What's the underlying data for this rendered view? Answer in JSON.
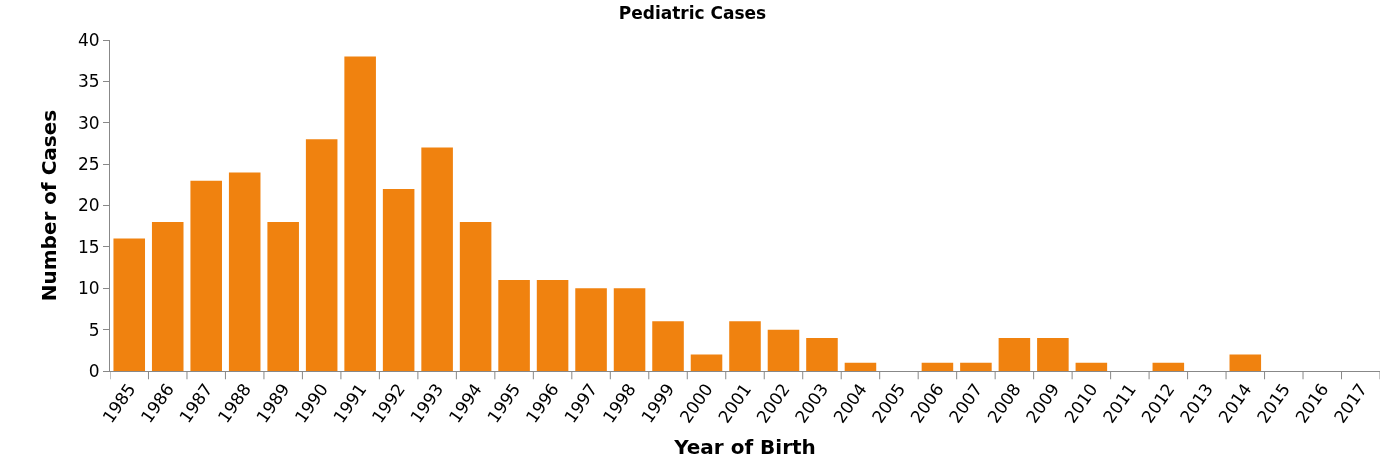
{
  "chart_data": {
    "type": "bar",
    "title": "Pediatric Cases",
    "xlabel": "Year of Birth",
    "ylabel": "Number of Cases",
    "categories": [
      "1985",
      "1986",
      "1987",
      "1988",
      "1989",
      "1990",
      "1991",
      "1992",
      "1993",
      "1994",
      "1995",
      "1996",
      "1997",
      "1998",
      "1999",
      "2000",
      "2001",
      "2002",
      "2003",
      "2004",
      "2005",
      "2006",
      "2007",
      "2008",
      "2009",
      "2010",
      "2011",
      "2012",
      "2013",
      "2014",
      "2015",
      "2016",
      "2017"
    ],
    "values": [
      16,
      18,
      23,
      24,
      18,
      28,
      38,
      22,
      27,
      18,
      11,
      11,
      10,
      10,
      6,
      2,
      6,
      5,
      4,
      1,
      0,
      1,
      1,
      4,
      4,
      1,
      0,
      1,
      0,
      2,
      0,
      0,
      0
    ],
    "color": "#f0820f",
    "ylim": [
      0,
      40
    ],
    "yticks": [
      0,
      5,
      10,
      15,
      20,
      25,
      30,
      35,
      40
    ],
    "legend": false
  }
}
